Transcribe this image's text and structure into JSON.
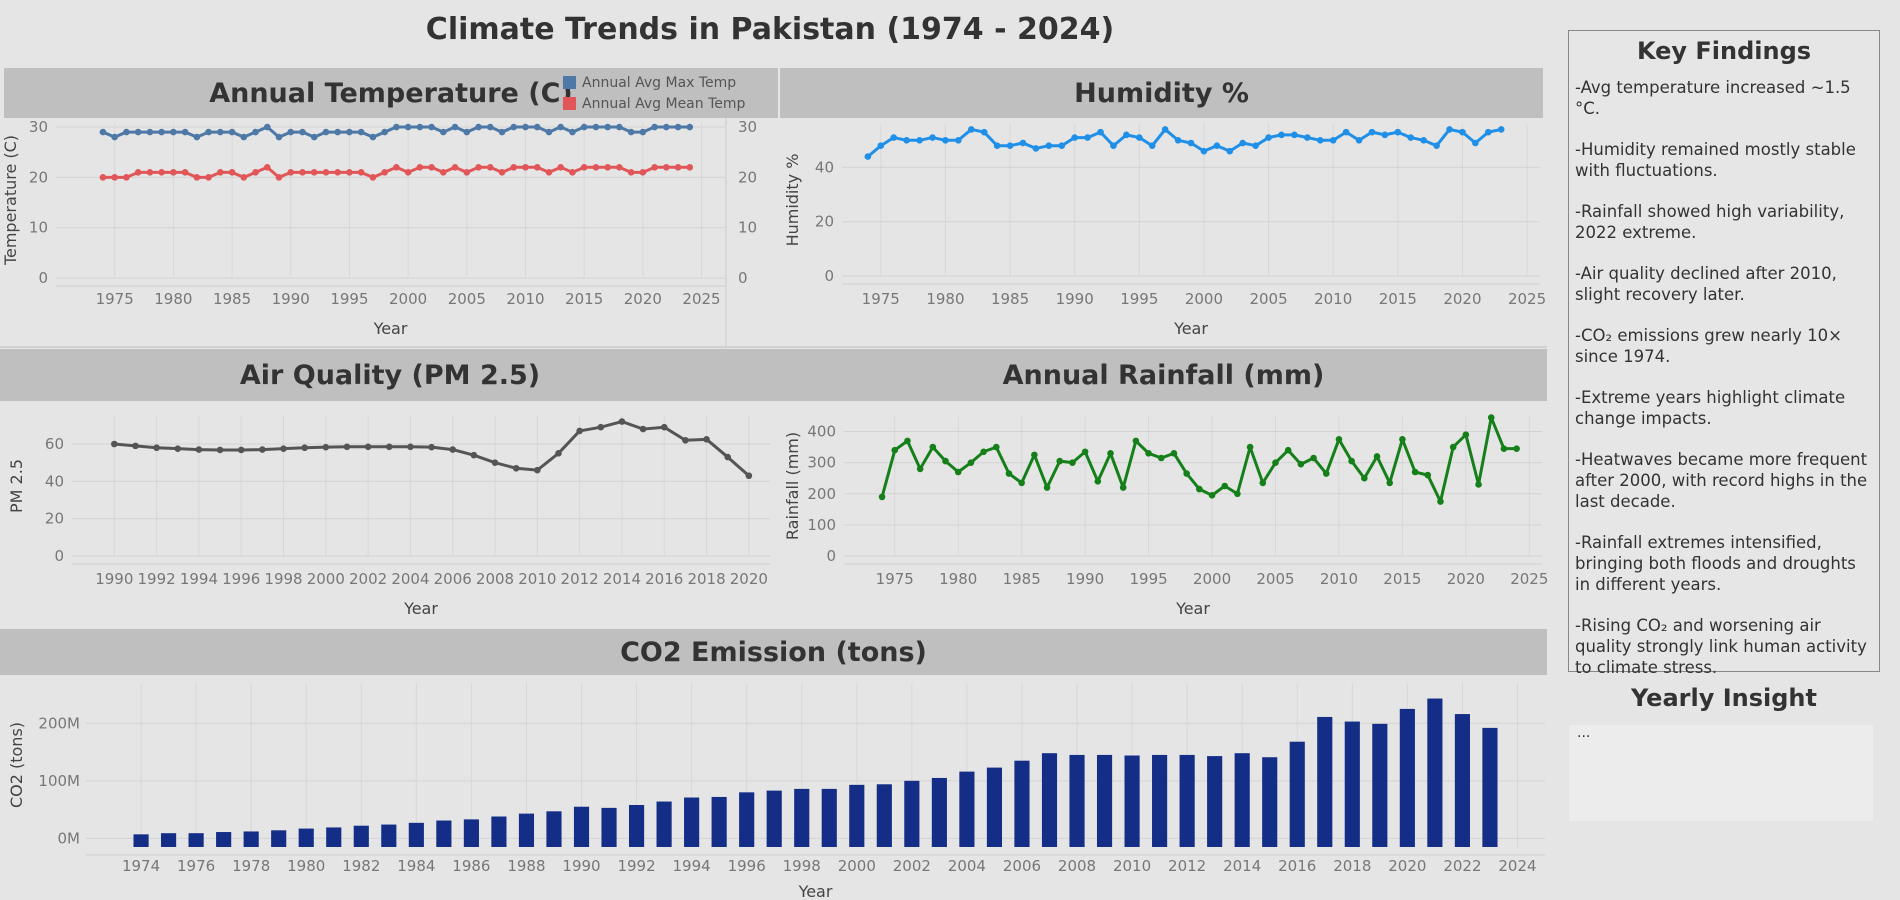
{
  "title": "Climate Trends in Pakistan (1974 - 2024)",
  "key_findings": {
    "title": "Key Findings",
    "items": [
      "-Avg temperature increased ~1.5 °C.",
      "-Humidity remained mostly stable with fluctuations.",
      "-Rainfall showed high variability, 2022 extreme.",
      "-Air quality declined after 2010, slight recovery later.",
      "-CO₂ emissions grew nearly 10× since 1974.",
      "-Extreme years highlight climate change impacts.",
      "-Heatwaves became more frequent after 2000, with record highs in the last decade.",
      "-Rainfall extremes intensified, bringing both floods and droughts in different years.",
      "-Rising CO₂ and worsening air quality strongly link human activity to climate stress."
    ]
  },
  "yearly_insight": {
    "title": "Yearly Insight",
    "text": "..."
  },
  "chart_data": [
    {
      "id": "temperature",
      "type": "line",
      "title": "Annual Temperature (C)",
      "xlabel": "Year",
      "ylabel": "Temperature (C)",
      "xlim": [
        1970,
        2027
      ],
      "ylim": [
        0,
        31
      ],
      "x_ticks": [
        1975,
        1980,
        1985,
        1990,
        1995,
        2000,
        2005,
        2010,
        2015,
        2020,
        2025
      ],
      "y_ticks": [
        0,
        10,
        20,
        30
      ],
      "legend": "top",
      "x": [
        1974,
        1975,
        1976,
        1977,
        1978,
        1979,
        1980,
        1981,
        1982,
        1983,
        1984,
        1985,
        1986,
        1987,
        1988,
        1989,
        1990,
        1991,
        1992,
        1993,
        1994,
        1995,
        1996,
        1997,
        1998,
        1999,
        2000,
        2001,
        2002,
        2003,
        2004,
        2005,
        2006,
        2007,
        2008,
        2009,
        2010,
        2011,
        2012,
        2013,
        2014,
        2015,
        2016,
        2017,
        2018,
        2019,
        2020,
        2021,
        2022,
        2023,
        2024
      ],
      "series": [
        {
          "name": "Annual Avg Max Temp",
          "color": "#4e79a7",
          "values": [
            29,
            28,
            29,
            29,
            29,
            29,
            29,
            29,
            28,
            29,
            29,
            29,
            28,
            29,
            30,
            28,
            29,
            29,
            28,
            29,
            29,
            29,
            29,
            28,
            29,
            30,
            30,
            30,
            30,
            29,
            30,
            29,
            30,
            30,
            29,
            30,
            30,
            30,
            29,
            30,
            29,
            30,
            30,
            30,
            30,
            29,
            29,
            30,
            30,
            30,
            30
          ]
        },
        {
          "name": "Annual Avg Mean Temp",
          "color": "#e15759",
          "values": [
            20,
            20,
            20,
            21,
            21,
            21,
            21,
            21,
            20,
            20,
            21,
            21,
            20,
            21,
            22,
            20,
            21,
            21,
            21,
            21,
            21,
            21,
            21,
            20,
            21,
            22,
            21,
            22,
            22,
            21,
            22,
            21,
            22,
            22,
            21,
            22,
            22,
            22,
            21,
            22,
            21,
            22,
            22,
            22,
            22,
            21,
            21,
            22,
            22,
            22,
            22
          ]
        }
      ]
    },
    {
      "id": "humidity",
      "type": "line",
      "title": "Humidity %",
      "xlabel": "Year",
      "ylabel": "Humidity %",
      "xlim": [
        1972,
        2026
      ],
      "ylim": [
        0,
        56
      ],
      "x_ticks": [
        1975,
        1980,
        1985,
        1990,
        1995,
        2000,
        2005,
        2010,
        2015,
        2020,
        2025
      ],
      "y_ticks": [
        0,
        20,
        40
      ],
      "x": [
        1974,
        1975,
        1976,
        1977,
        1978,
        1979,
        1980,
        1981,
        1982,
        1983,
        1984,
        1985,
        1986,
        1987,
        1988,
        1989,
        1990,
        1991,
        1992,
        1993,
        1994,
        1995,
        1996,
        1997,
        1998,
        1999,
        2000,
        2001,
        2002,
        2003,
        2004,
        2005,
        2006,
        2007,
        2008,
        2009,
        2010,
        2011,
        2012,
        2013,
        2014,
        2015,
        2016,
        2017,
        2018,
        2019,
        2020,
        2021,
        2022,
        2023
      ],
      "series": [
        {
          "name": "Humidity %",
          "color": "#1f8fe8",
          "values": [
            44,
            48,
            51,
            50,
            50,
            51,
            50,
            50,
            54,
            53,
            48,
            48,
            49,
            47,
            48,
            48,
            51,
            51,
            53,
            48,
            52,
            51,
            48,
            54,
            50,
            49,
            46,
            48,
            46,
            49,
            48,
            51,
            52,
            52,
            51,
            50,
            50,
            53,
            50,
            53,
            52,
            53,
            51,
            50,
            48,
            54,
            53,
            49,
            53,
            54
          ]
        }
      ]
    },
    {
      "id": "air_quality",
      "type": "line",
      "title": "Air Quality (PM 2.5)",
      "xlabel": "Year",
      "ylabel": "PM 2.5",
      "xlim": [
        1988,
        2021
      ],
      "ylim": [
        0,
        75
      ],
      "x_ticks": [
        1990,
        1992,
        1994,
        1996,
        1998,
        2000,
        2002,
        2004,
        2006,
        2008,
        2010,
        2012,
        2014,
        2016,
        2018,
        2020
      ],
      "y_ticks": [
        0,
        20,
        40,
        60
      ],
      "x": [
        1990,
        1991,
        1992,
        1993,
        1994,
        1995,
        1996,
        1997,
        1998,
        1999,
        2000,
        2001,
        2002,
        2003,
        2004,
        2005,
        2006,
        2007,
        2008,
        2009,
        2010,
        2011,
        2012,
        2013,
        2014,
        2015,
        2016,
        2017,
        2018,
        2019,
        2020
      ],
      "series": [
        {
          "name": "PM 2.5",
          "color": "#555555",
          "values": [
            60,
            59,
            58,
            57.5,
            57,
            56.8,
            56.8,
            57,
            57.5,
            58,
            58.3,
            58.5,
            58.5,
            58.5,
            58.5,
            58.3,
            57,
            54,
            50,
            47,
            46,
            55,
            67,
            69,
            72,
            68,
            69,
            62,
            62.5,
            53,
            43
          ]
        }
      ]
    },
    {
      "id": "rainfall",
      "type": "line",
      "title": "Annual Rainfall (mm)",
      "xlabel": "Year",
      "ylabel": "Rainfall (mm)",
      "xlim": [
        1971,
        2026
      ],
      "ylim": [
        0,
        450
      ],
      "x_ticks": [
        1975,
        1980,
        1985,
        1990,
        1995,
        2000,
        2005,
        2010,
        2015,
        2020,
        2025
      ],
      "y_ticks": [
        0,
        100,
        200,
        300,
        400
      ],
      "x": [
        1974,
        1975,
        1976,
        1977,
        1978,
        1979,
        1980,
        1981,
        1982,
        1983,
        1984,
        1985,
        1986,
        1987,
        1988,
        1989,
        1990,
        1991,
        1992,
        1993,
        1994,
        1995,
        1996,
        1997,
        1998,
        1999,
        2000,
        2001,
        2002,
        2003,
        2004,
        2005,
        2006,
        2007,
        2008,
        2009,
        2010,
        2011,
        2012,
        2013,
        2014,
        2015,
        2016,
        2017,
        2018,
        2019,
        2020,
        2021,
        2022,
        2023,
        2024
      ],
      "series": [
        {
          "name": "Rainfall (mm)",
          "color": "#15801a",
          "values": [
            190,
            340,
            370,
            280,
            350,
            305,
            270,
            300,
            335,
            350,
            265,
            235,
            325,
            220,
            305,
            300,
            335,
            240,
            330,
            220,
            370,
            330,
            315,
            330,
            265,
            215,
            195,
            225,
            200,
            350,
            235,
            300,
            340,
            295,
            315,
            265,
            375,
            305,
            250,
            320,
            235,
            375,
            270,
            260,
            175,
            350,
            390,
            230,
            445,
            345,
            345
          ]
        }
      ]
    },
    {
      "id": "co2",
      "type": "bar",
      "title": "CO2 Emission (tons)",
      "xlabel": "Year",
      "ylabel": "CO2 (tons)",
      "xlim": [
        1972,
        2025
      ],
      "ylim": [
        -15,
        270
      ],
      "unit": "M",
      "x_ticks": [
        1974,
        1976,
        1978,
        1980,
        1982,
        1984,
        1986,
        1988,
        1990,
        1992,
        1994,
        1996,
        1998,
        2000,
        2002,
        2004,
        2006,
        2008,
        2010,
        2012,
        2014,
        2016,
        2018,
        2020,
        2022,
        2024
      ],
      "y_ticks": [
        0,
        100,
        200
      ],
      "y_tick_labels": [
        "0M",
        "100M",
        "200M"
      ],
      "color": "#142d87",
      "categories": [
        1974,
        1975,
        1976,
        1977,
        1978,
        1979,
        1980,
        1981,
        1982,
        1983,
        1984,
        1985,
        1986,
        1987,
        1988,
        1989,
        1990,
        1991,
        1992,
        1993,
        1994,
        1995,
        1996,
        1997,
        1998,
        1999,
        2000,
        2001,
        2002,
        2003,
        2004,
        2005,
        2006,
        2007,
        2008,
        2009,
        2010,
        2011,
        2012,
        2013,
        2014,
        2015,
        2016,
        2017,
        2018,
        2019,
        2020,
        2021,
        2022,
        2023
      ],
      "values": [
        7,
        9,
        9,
        11,
        12,
        14,
        17,
        19,
        22,
        24,
        27,
        31,
        33,
        38,
        43,
        47,
        55,
        53,
        58,
        64,
        71,
        72,
        80,
        83,
        86,
        86,
        93,
        94,
        100,
        105,
        116,
        123,
        135,
        148,
        145,
        145,
        144,
        145,
        145,
        143,
        148,
        141,
        168,
        211,
        203,
        199,
        225,
        243,
        216,
        192
      ]
    }
  ]
}
